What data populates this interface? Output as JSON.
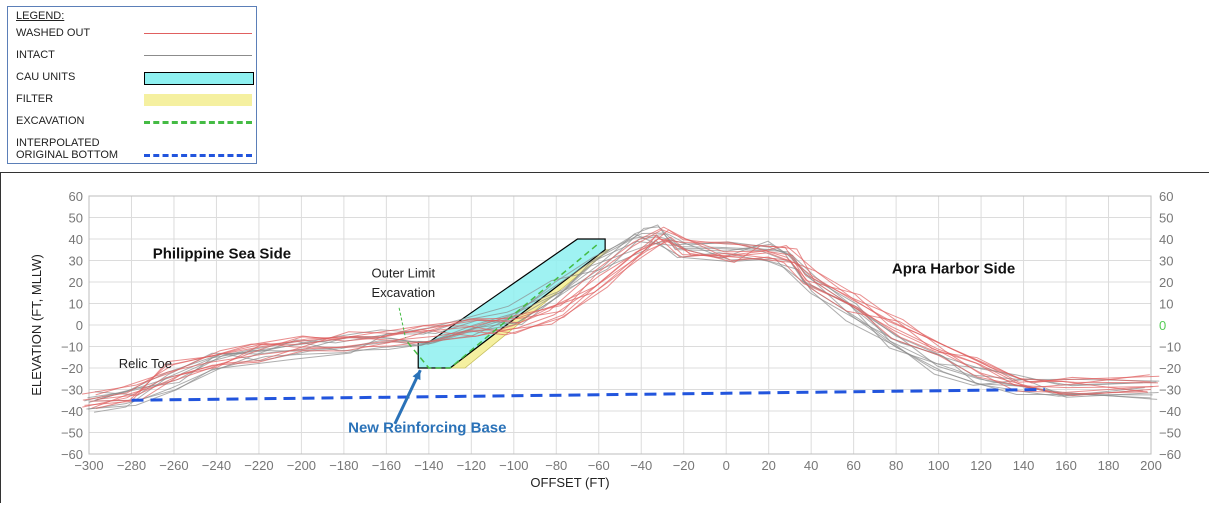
{
  "legend": {
    "title": "LEGEND:",
    "items": [
      {
        "label": "WASHED OUT",
        "kind": "line",
        "color": "#e06060",
        "dash": "solid"
      },
      {
        "label": "INTACT",
        "kind": "line",
        "color": "#8c8c8c",
        "dash": "solid"
      },
      {
        "label": "CAU UNITS",
        "kind": "box",
        "color": "#8ef0f0"
      },
      {
        "label": "FILTER",
        "kind": "fill",
        "color": "#f5f0a0"
      },
      {
        "label": "EXCAVATION",
        "kind": "line",
        "color": "#44bb44",
        "dash": "dashed"
      },
      {
        "label": "INTERPOLATED\nORIGINAL BOTTOM",
        "kind": "line",
        "color": "#2255dd",
        "dash": "dashed"
      }
    ]
  },
  "chart_data": {
    "type": "line",
    "title": "",
    "xlabel": "OFFSET (FT)",
    "ylabel": "ELEVATION (FT, MLLW)",
    "xlim": [
      -300,
      200
    ],
    "ylim": [
      -60,
      60
    ],
    "x_ticks": [
      -300,
      -280,
      -260,
      -240,
      -220,
      -200,
      -180,
      -160,
      -140,
      -120,
      -100,
      -80,
      -60,
      -40,
      -20,
      0,
      20,
      40,
      60,
      80,
      100,
      120,
      140,
      160,
      180,
      200
    ],
    "y_ticks": [
      -60,
      -50,
      -40,
      -30,
      -20,
      -10,
      0,
      10,
      20,
      30,
      40,
      50,
      60
    ],
    "grid": true,
    "highlight_right_tick": {
      "value": 0,
      "color": "#55cc55"
    },
    "series": [
      {
        "name": "INTACT",
        "color": "#8c8c8c",
        "x": [
          -300,
          -280,
          -260,
          -240,
          -220,
          -200,
          -180,
          -160,
          -140,
          -120,
          -100,
          -80,
          -60,
          -40,
          -30,
          -20,
          0,
          20,
          30,
          40,
          60,
          80,
          100,
          120,
          140,
          160,
          200
        ],
        "y": [
          -36,
          -34,
          -27,
          -18,
          -14,
          -11,
          -9,
          -7,
          -5,
          -1,
          5,
          16,
          30,
          40,
          42,
          35,
          34,
          34,
          30,
          18,
          5,
          -8,
          -18,
          -24,
          -28,
          -29,
          -30
        ]
      },
      {
        "name": "WASHED OUT",
        "color": "#e06060",
        "x": [
          -300,
          -280,
          -260,
          -240,
          -220,
          -200,
          -180,
          -160,
          -140,
          -120,
          -100,
          -80,
          -60,
          -40,
          -30,
          -20,
          0,
          20,
          30,
          40,
          60,
          80,
          100,
          120,
          140,
          160,
          200
        ],
        "y": [
          -35,
          -32,
          -22,
          -16,
          -13,
          -10,
          -8,
          -6,
          -4,
          -2,
          0,
          5,
          20,
          36,
          42,
          36,
          34,
          34,
          32,
          20,
          10,
          -2,
          -12,
          -20,
          -27,
          -28,
          -28
        ]
      },
      {
        "name": "INTERPOLATED ORIGINAL BOTTOM",
        "color": "#2255dd",
        "x": [
          -280,
          150
        ],
        "y": [
          -35,
          -30
        ]
      },
      {
        "name": "EXCAVATION",
        "color": "#44bb44",
        "x": [
          -150,
          -140,
          -130,
          -60
        ],
        "y": [
          -8,
          -20,
          -20,
          38
        ]
      }
    ],
    "cau_units": {
      "x": [
        -145,
        -145,
        -140,
        -70,
        -57,
        -57,
        -130,
        -140
      ],
      "y": [
        -20,
        -8,
        -8,
        40,
        40,
        35,
        -20,
        -20
      ]
    },
    "filter": {
      "x": [
        -130,
        -57,
        -55,
        -123
      ],
      "y": [
        -20,
        35,
        35,
        -20
      ]
    },
    "annotations": [
      {
        "text": "Philippine  Sea Side",
        "x": -270,
        "y": 31,
        "style": "bold"
      },
      {
        "text": "Apra Harbor Side",
        "x": 78,
        "y": 24,
        "style": "bold"
      },
      {
        "text": "Outer Limit",
        "x": -167,
        "y": 22,
        "style": "normal"
      },
      {
        "text": "Excavation",
        "x": -167,
        "y": 13,
        "style": "normal"
      },
      {
        "text": "Relic Toe",
        "x": -286,
        "y": -20,
        "style": "normal"
      },
      {
        "text": "New Reinforcing Base",
        "x": -178,
        "y": -50,
        "style": "callout"
      }
    ]
  }
}
